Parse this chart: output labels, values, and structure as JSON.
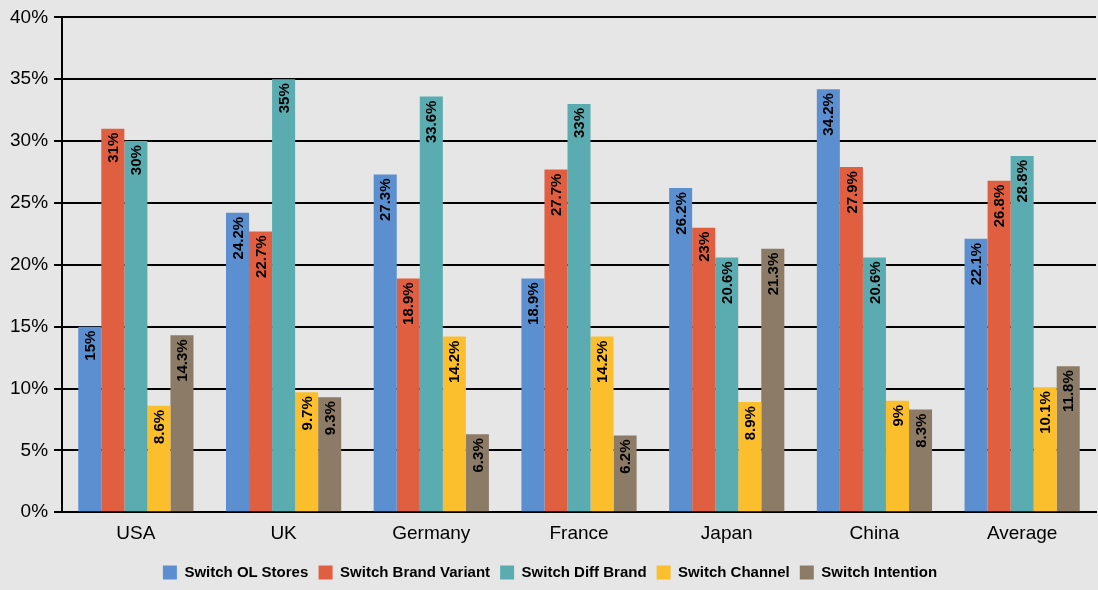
{
  "chart_data": {
    "type": "bar",
    "categories": [
      "USA",
      "UK",
      "Germany",
      "France",
      "Japan",
      "China",
      "Average"
    ],
    "series": [
      {
        "name": "Switch OL Stores",
        "color": "#5b8fd0",
        "values": [
          15,
          24.2,
          27.3,
          18.9,
          26.2,
          34.2,
          22.1
        ],
        "value_labels": [
          "15%",
          "24.2%",
          "27.3%",
          "18.9%",
          "26.2%",
          "34.2%",
          "22.1%"
        ]
      },
      {
        "name": "Switch Brand Variant",
        "color": "#e15f41",
        "values": [
          31,
          22.7,
          18.9,
          27.7,
          23,
          27.9,
          26.8
        ],
        "value_labels": [
          "31%",
          "22.7%",
          "18.9%",
          "27.7%",
          "23%",
          "27.9%",
          "26.8%"
        ]
      },
      {
        "name": "Switch Diff Brand",
        "color": "#5aacb0",
        "values": [
          30,
          35,
          33.6,
          33,
          20.6,
          20.6,
          28.8
        ],
        "value_labels": [
          "30%",
          "35%",
          "33.6%",
          "33%",
          "20.6%",
          "20.6%",
          "28.8%"
        ]
      },
      {
        "name": "Switch Channel",
        "color": "#fbbf2e",
        "values": [
          8.6,
          9.7,
          14.2,
          14.2,
          8.9,
          9,
          10.1
        ],
        "value_labels": [
          "8.6%",
          "9.7%",
          "14.2%",
          "14.2%",
          "8.9%",
          "9%",
          "10.1%"
        ]
      },
      {
        "name": "Switch Intention",
        "color": "#8c7b67",
        "values": [
          14.3,
          9.3,
          6.3,
          6.2,
          21.3,
          8.3,
          11.8
        ],
        "value_labels": [
          "14.3%",
          "9.3%",
          "6.3%",
          "6.2%",
          "21.3%",
          "8.3%",
          "11.8%"
        ]
      }
    ],
    "ylim": [
      0,
      40
    ],
    "yticks": [
      {
        "value": 0,
        "label": "0%"
      },
      {
        "value": 5,
        "label": "5%"
      },
      {
        "value": 10,
        "label": "10%"
      },
      {
        "value": 15,
        "label": "15%"
      },
      {
        "value": 20,
        "label": "20%"
      },
      {
        "value": 25,
        "label": "25%"
      },
      {
        "value": 30,
        "label": "30%"
      },
      {
        "value": 35,
        "label": "35%"
      },
      {
        "value": 40,
        "label": "40%"
      }
    ],
    "grid": "y",
    "legend": "bottom"
  }
}
